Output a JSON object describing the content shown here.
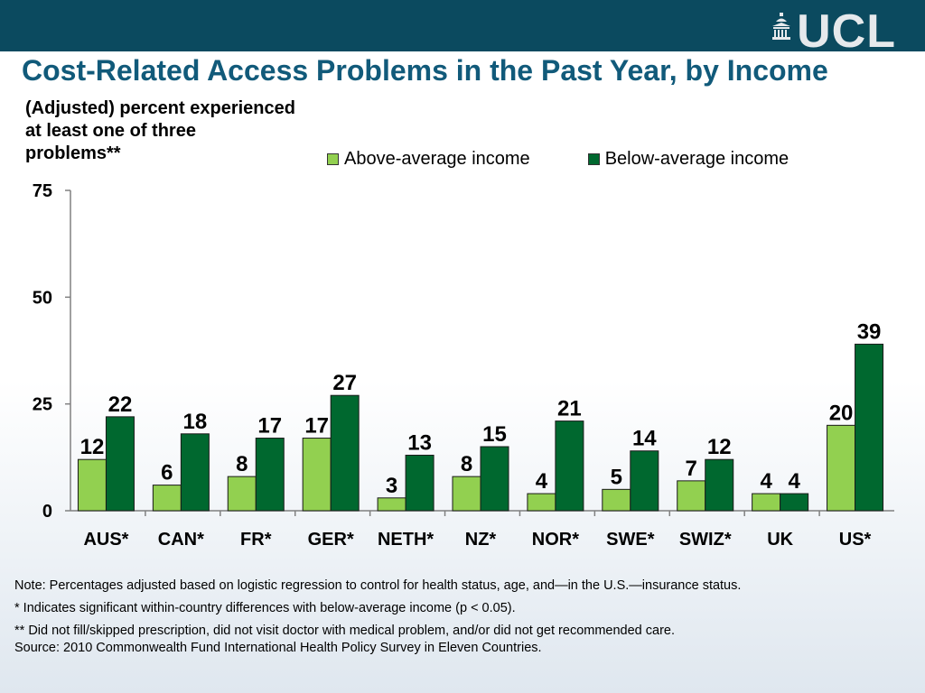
{
  "brand": {
    "logo_text": "UCL",
    "logo_icon": "portico-icon"
  },
  "title": "Cost-Related Access Problems in the Past Year, by Income",
  "subtitle": "(Adjusted) percent experienced at least one of three problems**",
  "colors": {
    "band": "#0b4a5f",
    "title": "#115a7a",
    "above": "#92d050",
    "below": "#00682f"
  },
  "chart_data": {
    "type": "bar",
    "categories": [
      "AUS*",
      "CAN*",
      "FR*",
      "GER*",
      "NETH*",
      "NZ*",
      "NOR*",
      "SWE*",
      "SWIZ*",
      "UK",
      "US*"
    ],
    "series": [
      {
        "name": "Above-average income",
        "color": "#92d050",
        "values": [
          12,
          6,
          8,
          17,
          3,
          8,
          4,
          5,
          7,
          4,
          20
        ]
      },
      {
        "name": "Below-average income",
        "color": "#00682f",
        "values": [
          22,
          18,
          17,
          27,
          13,
          15,
          21,
          14,
          12,
          4,
          39
        ]
      }
    ],
    "ylim": [
      0,
      75
    ],
    "yticks": [
      0,
      25,
      50,
      75
    ],
    "legend": "top",
    "grid": false
  },
  "notes": [
    "Note: Percentages adjusted based on logistic regression to control for health status, age, and—in the U.S.—insurance status.",
    "* Indicates significant within-country differences with below-average income (p < 0.05).",
    "** Did not fill/skipped prescription, did not visit doctor with medical problem, and/or did not get recommended care.",
    "Source: 2010 Commonwealth Fund International Health Policy Survey in Eleven Countries."
  ]
}
